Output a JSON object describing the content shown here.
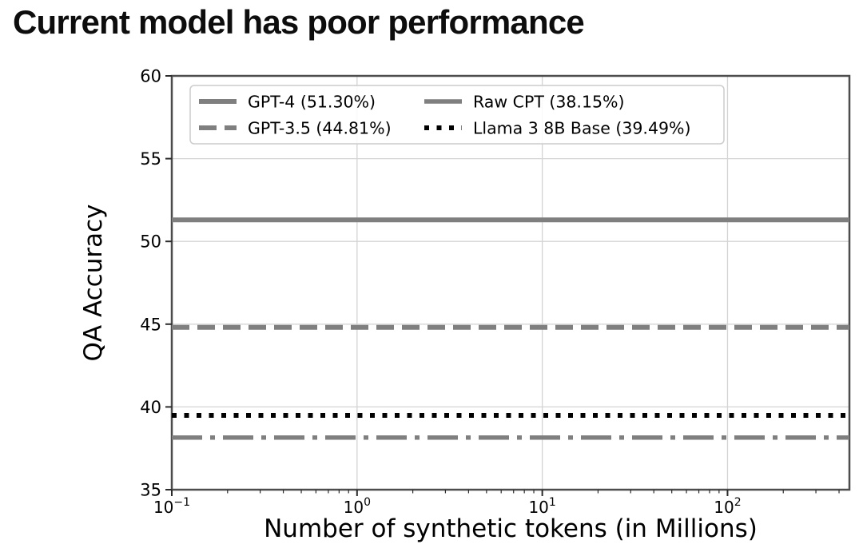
{
  "page": {
    "title": "Current model has poor performance"
  },
  "chart_data": {
    "type": "line",
    "title": "Current model has poor performance",
    "xlabel": "Number of synthetic tokens (in Millions)",
    "ylabel": "QA Accuracy",
    "x_scale": "log",
    "xlim": [
      0.1,
      455
    ],
    "ylim": [
      35,
      60
    ],
    "y_ticks": [
      35,
      40,
      45,
      50,
      55,
      60
    ],
    "x_major_ticks": [
      {
        "value": 0.1,
        "base": "10",
        "exp": "−1"
      },
      {
        "value": 1,
        "base": "10",
        "exp": "0"
      },
      {
        "value": 10,
        "base": "10",
        "exp": "1"
      },
      {
        "value": 100,
        "base": "10",
        "exp": "2"
      }
    ],
    "grid": true,
    "legend_position": "upper-left",
    "legend_columns": 2,
    "series": [
      {
        "label": "GPT-4 (51.30%)",
        "value": 51.3,
        "color": "#7f7f7f",
        "linestyle": "solid",
        "legend_linestyle": "solid",
        "linewidth": 6
      },
      {
        "label": "GPT-3.5 (44.81%)",
        "value": 44.81,
        "color": "#7f7f7f",
        "linestyle": "dashed",
        "legend_linestyle": "dashed",
        "linewidth": 6
      },
      {
        "label": "Raw CPT (38.15%)",
        "value": 38.15,
        "color": "#7f7f7f",
        "linestyle": "dashdot",
        "legend_linestyle": "solid",
        "linewidth": 5.5
      },
      {
        "label": "Llama 3 8B Base (39.49%)",
        "value": 39.49,
        "color": "#000000",
        "linestyle": "dotted",
        "legend_linestyle": "dotted",
        "linewidth": 6
      }
    ],
    "colors": {
      "grid": "#d4d4d4",
      "spine": "#4d4d4d",
      "tick": "#2b2b2b",
      "text": "#000000",
      "legend_border": "#cccccc"
    }
  }
}
